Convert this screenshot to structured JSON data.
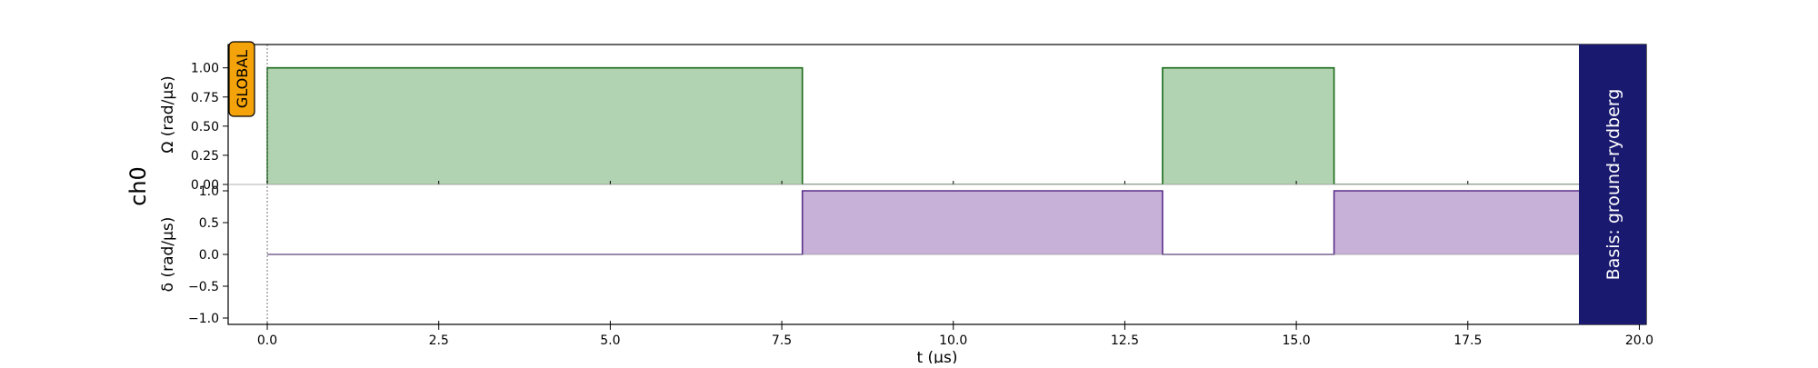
{
  "channel_label": "ch0",
  "global_badge": "GLOBAL",
  "basis_label": "Basis: ground-rydberg",
  "colors": {
    "amplitude_fill": "#b2d3b1",
    "amplitude_line": "#1a6b1a",
    "detuning_fill": "#c8b1d9",
    "detuning_line": "#5a2f8a",
    "global_badge_bg": "#f5a30a",
    "basis_bg": "#191970",
    "basis_text": "#ffffff"
  },
  "chart_data": [
    {
      "type": "area",
      "ylabel": "Ω (rad/µs)",
      "xlim": [
        -0.57,
        20.1
      ],
      "ylim": [
        0,
        1.2
      ],
      "yticks": [
        0.0,
        0.25,
        0.5,
        0.75,
        1.0
      ],
      "ytick_labels": [
        "0.00",
        "0.25",
        "0.50",
        "0.75",
        "1.00"
      ],
      "series": [
        {
          "x": [
            0,
            0,
            7.8,
            7.8,
            13.05,
            13.05,
            15.55,
            15.55,
            19.2
          ],
          "values": [
            0,
            1,
            1,
            0,
            0,
            1,
            1,
            0,
            0
          ]
        }
      ]
    },
    {
      "type": "area",
      "ylabel": "δ (rad/µs)",
      "xlabel": "t (µs)",
      "xlim": [
        -0.57,
        20.1
      ],
      "ylim": [
        -1.1,
        1.1
      ],
      "yticks": [
        -1.0,
        -0.5,
        0.0,
        0.5,
        1.0
      ],
      "ytick_labels": [
        "−1.0",
        "−0.5",
        "0.0",
        "0.5",
        "1.0"
      ],
      "xticks": [
        0,
        2.5,
        5,
        7.5,
        10,
        12.5,
        15,
        17.5,
        20
      ],
      "xtick_labels": [
        "0.0",
        "2.5",
        "5.0",
        "7.5",
        "10.0",
        "12.5",
        "15.0",
        "17.5",
        "20.0"
      ],
      "series": [
        {
          "x": [
            0,
            7.8,
            7.8,
            13.05,
            13.05,
            15.55,
            15.55,
            19.2
          ],
          "values": [
            0,
            0,
            1,
            1,
            0,
            0,
            1,
            1
          ]
        }
      ]
    }
  ]
}
